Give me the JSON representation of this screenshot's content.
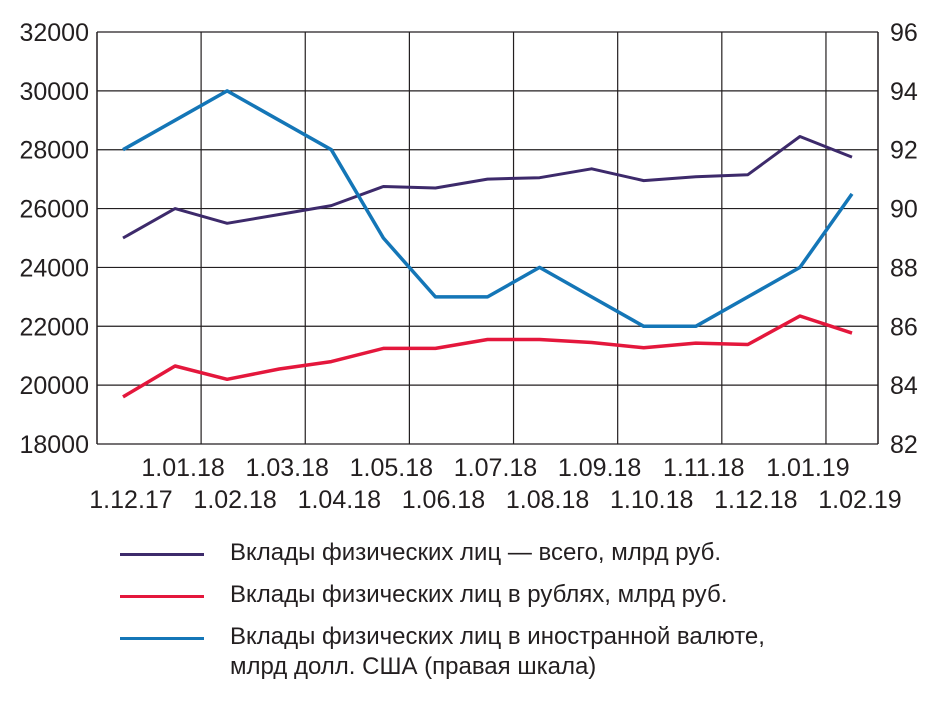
{
  "chart_data": {
    "type": "line",
    "title": "",
    "x": [
      "1.12.17",
      "1.01.18",
      "1.02.18",
      "1.03.18",
      "1.04.18",
      "1.05.18",
      "1.06.18",
      "1.07.18",
      "1.08.18",
      "1.09.18",
      "1.10.18",
      "1.11.18",
      "1.12.18",
      "1.01.19",
      "1.02.19"
    ],
    "left_axis": {
      "range": [
        18000,
        32000
      ],
      "ticks": [
        "18000",
        "20000",
        "22000",
        "24000",
        "26000",
        "28000",
        "30000",
        "32000"
      ]
    },
    "right_axis": {
      "range": [
        82,
        96
      ],
      "ticks": [
        "82",
        "84",
        "86",
        "88",
        "90",
        "92",
        "94",
        "96"
      ]
    },
    "grid": true,
    "legend_position": "bottom",
    "series": [
      {
        "name": "Вклады физических лиц — всего, млрд руб.",
        "axis": "left",
        "color": "#3d2a6b",
        "values": [
          25000,
          26000,
          25500,
          25800,
          26100,
          26750,
          26700,
          27000,
          27050,
          27350,
          26950,
          27080,
          27150,
          28450,
          27750
        ]
      },
      {
        "name": "Вклады физических лиц в рублях, млрд руб.",
        "axis": "left",
        "color": "#e4173c",
        "values": [
          19600,
          20650,
          20200,
          20550,
          20800,
          21250,
          21250,
          21550,
          21550,
          21450,
          21270,
          21430,
          21380,
          22350,
          21770
        ]
      },
      {
        "name": "Вклады физических лиц в иностранной валюте,\nмлрд долл. США (правая шкала)",
        "axis": "right",
        "color": "#1476b7",
        "values": [
          92,
          93,
          94,
          93,
          92,
          89,
          87,
          87,
          88,
          87,
          86,
          86,
          87,
          88,
          90.5
        ]
      }
    ]
  }
}
